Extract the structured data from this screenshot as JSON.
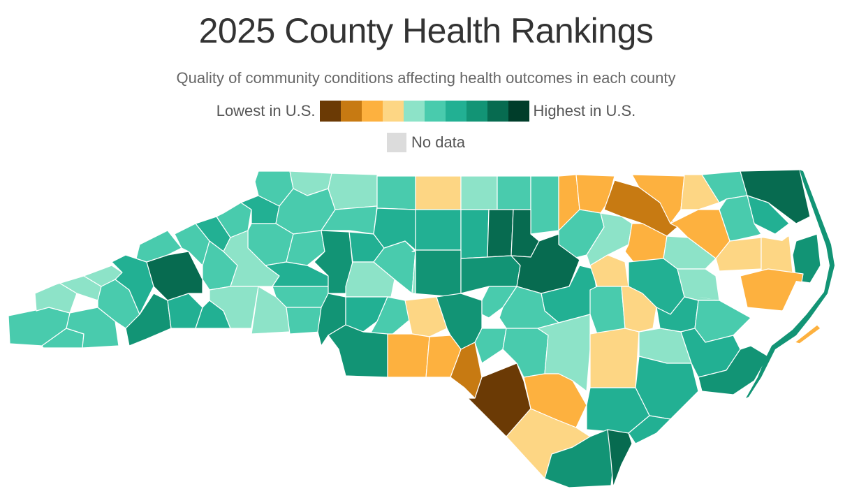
{
  "title": "2025 County Health Rankings",
  "subtitle": "Quality of community conditions affecting health outcomes in each county",
  "legend": {
    "low_label": "Lowest in U.S.",
    "high_label": "Highest in U.S.",
    "no_data_label": "No data",
    "colors": [
      "#6b3a05",
      "#c77a12",
      "#fdb13f",
      "#fdd684",
      "#8de3c8",
      "#49cbad",
      "#22b093",
      "#129475",
      "#076b50",
      "#003d2a"
    ],
    "no_data_color": "#dcdcdc"
  }
}
